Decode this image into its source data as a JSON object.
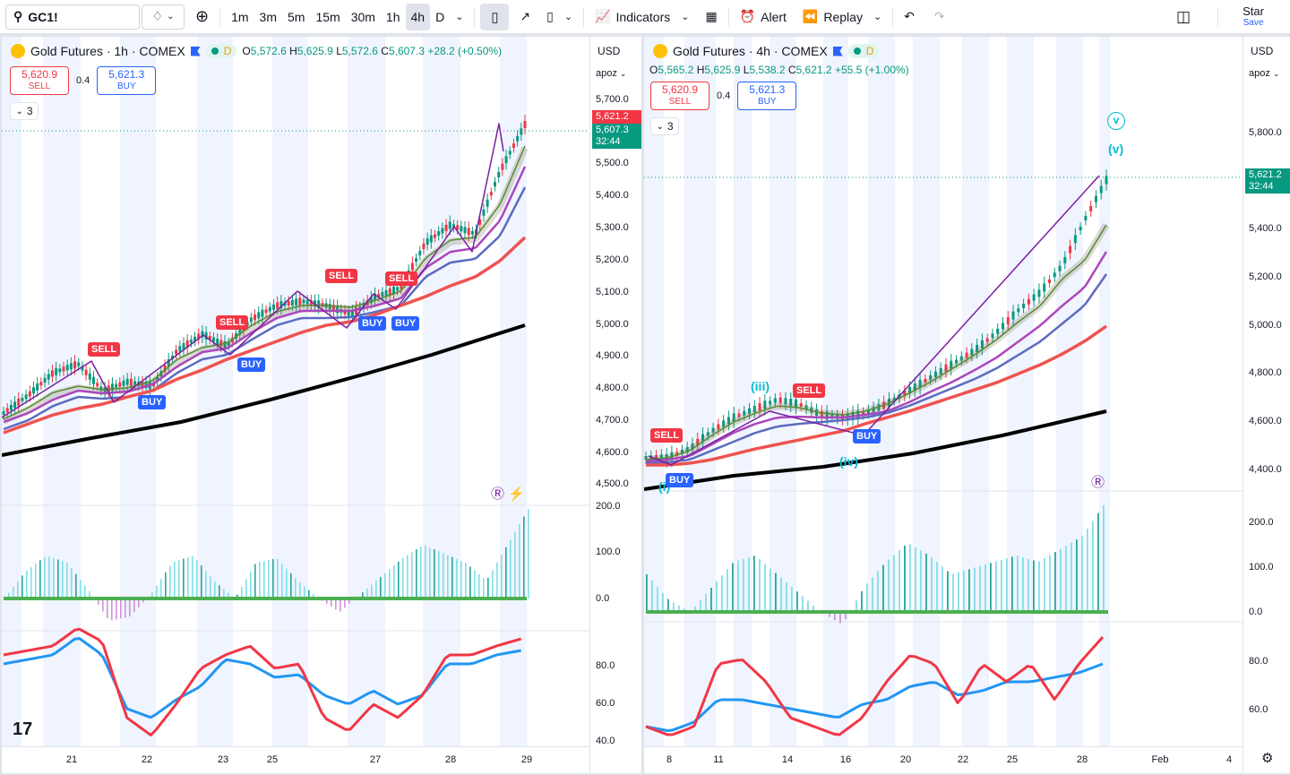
{
  "toolbar": {
    "symbol": "GC1!",
    "intervals": [
      "1m",
      "3m",
      "5m",
      "15m",
      "30m",
      "1h",
      "4h",
      "D"
    ],
    "active_interval": "4h",
    "indicators_label": "Indicators",
    "alert_label": "Alert",
    "replay_label": "Replay",
    "account_name": "Star",
    "save_label": "Save"
  },
  "left_chart": {
    "title": "Gold Futures · 1h · COMEX",
    "ohlc": {
      "o": "5,572.6",
      "h": "5,625.9",
      "l": "5,572.6",
      "c": "5,607.3",
      "change": "+28.2 (+0.50%)"
    },
    "sell_price": "5,620.9",
    "sell_label": "SELL",
    "spread": "0.4",
    "buy_price": "5,621.3",
    "buy_label": "BUY",
    "collapse_count": "3",
    "currency": "USD",
    "scale_mode": "apoz",
    "price_ticks": [
      "5,700.0",
      "5,600.0",
      "5,500.0",
      "5,400.0",
      "5,300.0",
      "5,200.0",
      "5,100.0",
      "5,000.0",
      "4,900.0",
      "4,800.0",
      "4,700.0",
      "4,600.0",
      "4,500.0"
    ],
    "badge_top": "5,621.2",
    "badge_price": "5,607.3",
    "badge_timer": "32:44",
    "osc_ticks": [
      "200.0",
      "100.0",
      "0.0"
    ],
    "rsi_ticks": [
      "80.0",
      "60.0",
      "40.0"
    ],
    "time_labels": [
      "21",
      "22",
      "23",
      "25",
      "27",
      "28",
      "29"
    ],
    "signals": [
      {
        "type": "SELL"
      },
      {
        "type": "BUY"
      },
      {
        "type": "SELL"
      },
      {
        "type": "BUY"
      },
      {
        "type": "SELL"
      },
      {
        "type": "BUY"
      },
      {
        "type": "SELL"
      },
      {
        "type": "BUY"
      }
    ]
  },
  "right_chart": {
    "title": "Gold Futures · 4h · COMEX",
    "ohlc": {
      "o": "5,565.2",
      "h": "5,625.9",
      "l": "5,538.2",
      "c": "5,621.2",
      "change": "+55.5 (+1.00%)"
    },
    "sell_price": "5,620.9",
    "sell_label": "SELL",
    "spread": "0.4",
    "buy_price": "5,621.3",
    "buy_label": "BUY",
    "collapse_count": "3",
    "currency": "USD",
    "scale_mode": "apoz",
    "price_ticks": [
      "5,800.0",
      "5,600.0",
      "5,400.0",
      "5,200.0",
      "5,000.0",
      "4,800.0",
      "4,600.0",
      "4,400.0"
    ],
    "badge_price": "5,621.2",
    "badge_timer": "32:44",
    "osc_ticks": [
      "200.0",
      "100.0",
      "0.0"
    ],
    "rsi_ticks": [
      "80.0",
      "60.0"
    ],
    "time_labels": [
      "8",
      "11",
      "14",
      "16",
      "20",
      "22",
      "25",
      "28",
      "Feb",
      "4"
    ],
    "wave_labels": [
      "v",
      "(v)",
      "(iii)",
      "(iv)",
      "(i)"
    ],
    "signals": [
      {
        "type": "SELL"
      },
      {
        "type": "SELL"
      },
      {
        "type": "BUY"
      },
      {
        "type": "BUY"
      }
    ]
  },
  "colors": {
    "sell": "#f23645",
    "buy": "#2962ff",
    "up": "#089981",
    "wave": "#00bcd4"
  }
}
